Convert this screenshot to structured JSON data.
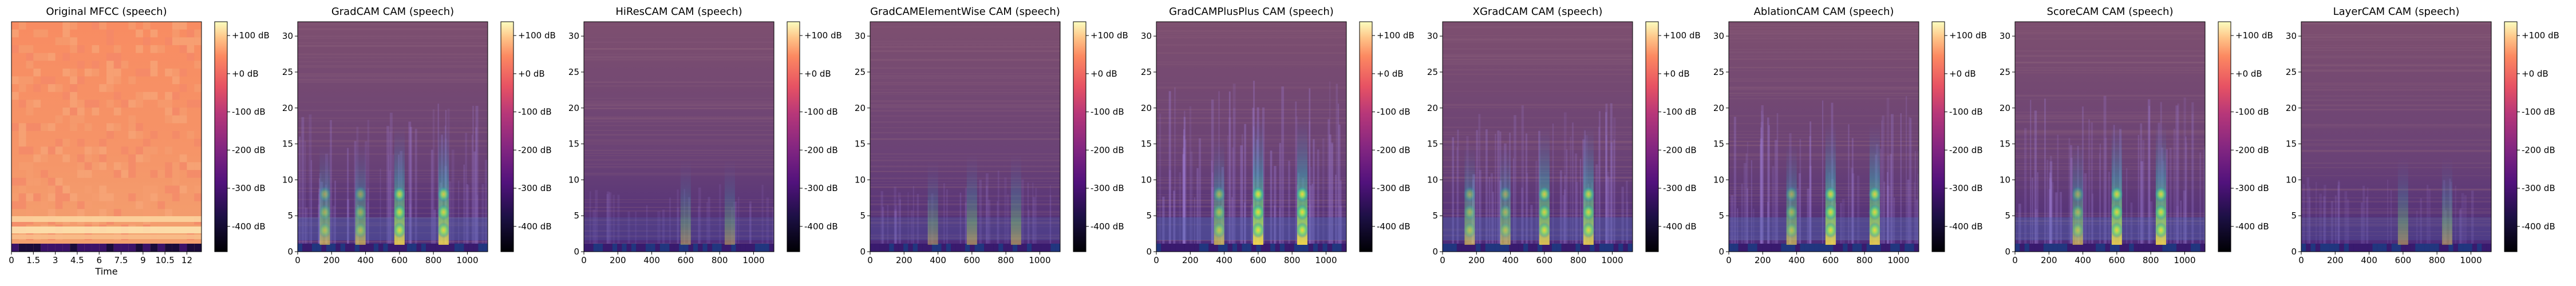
{
  "chart_data": [
    {
      "type": "heatmap",
      "title": "Original MFCC (speech)",
      "xlabel": "Time",
      "ylabel": "",
      "x_ticks": [
        "0",
        "1.5",
        "3",
        "4.5",
        "6",
        "7.5",
        "9",
        "10.5",
        "12"
      ],
      "xlim": [
        0,
        13
      ],
      "y_ticks": [],
      "colorbar_ticks": [
        "+100 dB",
        "+0 dB",
        "-100 dB",
        "-200 dB",
        "-300 dB",
        "-400 dB"
      ],
      "colormap": "magma",
      "rendering": "original"
    },
    {
      "type": "heatmap",
      "title": "GradCAM CAM (speech)",
      "xlabel": "",
      "ylabel": "",
      "x_ticks": [
        "0",
        "200",
        "400",
        "600",
        "800",
        "1000"
      ],
      "xlim": [
        0,
        1120
      ],
      "y_ticks": [
        "0",
        "5",
        "10",
        "15",
        "20",
        "25",
        "30"
      ],
      "ylim": [
        0,
        32
      ],
      "colorbar_ticks": [
        "+100 dB",
        "+0 dB",
        "-100 dB",
        "-200 dB",
        "-300 dB",
        "-400 dB"
      ],
      "colormap": "magma",
      "rendering": "cam",
      "hotspots_x": [
        600,
        860,
        370,
        160
      ],
      "intensity": 0.8
    },
    {
      "type": "heatmap",
      "title": "HiResCAM CAM (speech)",
      "xlabel": "",
      "ylabel": "",
      "x_ticks": [
        "0",
        "200",
        "400",
        "600",
        "800",
        "1000"
      ],
      "xlim": [
        0,
        1120
      ],
      "y_ticks": [
        "0",
        "5",
        "10",
        "15",
        "20",
        "25",
        "30"
      ],
      "ylim": [
        0,
        32
      ],
      "colorbar_ticks": [
        "+100 dB",
        "+0 dB",
        "-100 dB",
        "-200 dB",
        "-300 dB",
        "-400 dB"
      ],
      "colormap": "magma",
      "rendering": "cam",
      "hotspots_x": [
        600,
        860
      ],
      "intensity": 0.2
    },
    {
      "type": "heatmap",
      "title": "GradCAMElementWise CAM (speech)",
      "xlabel": "",
      "ylabel": "",
      "x_ticks": [
        "0",
        "200",
        "400",
        "600",
        "800",
        "1000"
      ],
      "xlim": [
        0,
        1120
      ],
      "y_ticks": [
        "0",
        "5",
        "10",
        "15",
        "20",
        "25",
        "30"
      ],
      "ylim": [
        0,
        32
      ],
      "colorbar_ticks": [
        "+100 dB",
        "+0 dB",
        "-100 dB",
        "-200 dB",
        "-300 dB",
        "-400 dB"
      ],
      "colormap": "magma",
      "rendering": "cam",
      "hotspots_x": [
        600,
        860,
        370
      ],
      "intensity": 0.3
    },
    {
      "type": "heatmap",
      "title": "GradCAMPlusPlus CAM (speech)",
      "xlabel": "",
      "ylabel": "",
      "x_ticks": [
        "0",
        "200",
        "400",
        "600",
        "800",
        "1000"
      ],
      "xlim": [
        0,
        1120
      ],
      "y_ticks": [
        "0",
        "5",
        "10",
        "15",
        "20",
        "25",
        "30"
      ],
      "ylim": [
        0,
        32
      ],
      "colorbar_ticks": [
        "+100 dB",
        "+0 dB",
        "-100 dB",
        "-200 dB",
        "-300 dB",
        "-400 dB"
      ],
      "colormap": "magma",
      "rendering": "cam",
      "hotspots_x": [
        600,
        860,
        370
      ],
      "intensity": 0.95
    },
    {
      "type": "heatmap",
      "title": "XGradCAM CAM (speech)",
      "xlabel": "",
      "ylabel": "",
      "x_ticks": [
        "0",
        "200",
        "400",
        "600",
        "800",
        "1000"
      ],
      "xlim": [
        0,
        1120
      ],
      "y_ticks": [
        "0",
        "5",
        "10",
        "15",
        "20",
        "25",
        "30"
      ],
      "ylim": [
        0,
        32
      ],
      "colorbar_ticks": [
        "+100 dB",
        "+0 dB",
        "-100 dB",
        "-200 dB",
        "-300 dB",
        "-400 dB"
      ],
      "colormap": "magma",
      "rendering": "cam",
      "hotspots_x": [
        600,
        860,
        370,
        160
      ],
      "intensity": 0.8
    },
    {
      "type": "heatmap",
      "title": "AblationCAM CAM (speech)",
      "xlabel": "",
      "ylabel": "",
      "x_ticks": [
        "0",
        "200",
        "400",
        "600",
        "800",
        "1000"
      ],
      "xlim": [
        0,
        1120
      ],
      "y_ticks": [
        "0",
        "5",
        "10",
        "15",
        "20",
        "25",
        "30"
      ],
      "ylim": [
        0,
        32
      ],
      "colorbar_ticks": [
        "+100 dB",
        "+0 dB",
        "-100 dB",
        "-200 dB",
        "-300 dB",
        "-400 dB"
      ],
      "colormap": "magma",
      "rendering": "cam",
      "hotspots_x": [
        600,
        860,
        370
      ],
      "intensity": 0.85
    },
    {
      "type": "heatmap",
      "title": "ScoreCAM CAM (speech)",
      "xlabel": "",
      "ylabel": "",
      "x_ticks": [
        "0",
        "200",
        "400",
        "600",
        "800",
        "1000"
      ],
      "xlim": [
        0,
        1120
      ],
      "y_ticks": [
        "0",
        "5",
        "10",
        "15",
        "20",
        "25",
        "30"
      ],
      "ylim": [
        0,
        32
      ],
      "colorbar_ticks": [
        "+100 dB",
        "+0 dB",
        "-100 dB",
        "-200 dB",
        "-300 dB",
        "-400 dB"
      ],
      "colormap": "magma",
      "rendering": "cam",
      "hotspots_x": [
        600,
        860,
        370
      ],
      "intensity": 0.85
    },
    {
      "type": "heatmap",
      "title": "LayerCAM CAM (speech)",
      "xlabel": "",
      "ylabel": "",
      "x_ticks": [
        "0",
        "200",
        "400",
        "600",
        "800",
        "1000"
      ],
      "xlim": [
        0,
        1120
      ],
      "y_ticks": [
        "0",
        "5",
        "10",
        "15",
        "20",
        "25",
        "30"
      ],
      "ylim": [
        0,
        32
      ],
      "colorbar_ticks": [
        "+100 dB",
        "+0 dB",
        "-100 dB",
        "-200 dB",
        "-300 dB",
        "-400 dB"
      ],
      "colormap": "magma",
      "rendering": "cam",
      "hotspots_x": [
        600,
        860
      ],
      "intensity": 0.25
    }
  ]
}
